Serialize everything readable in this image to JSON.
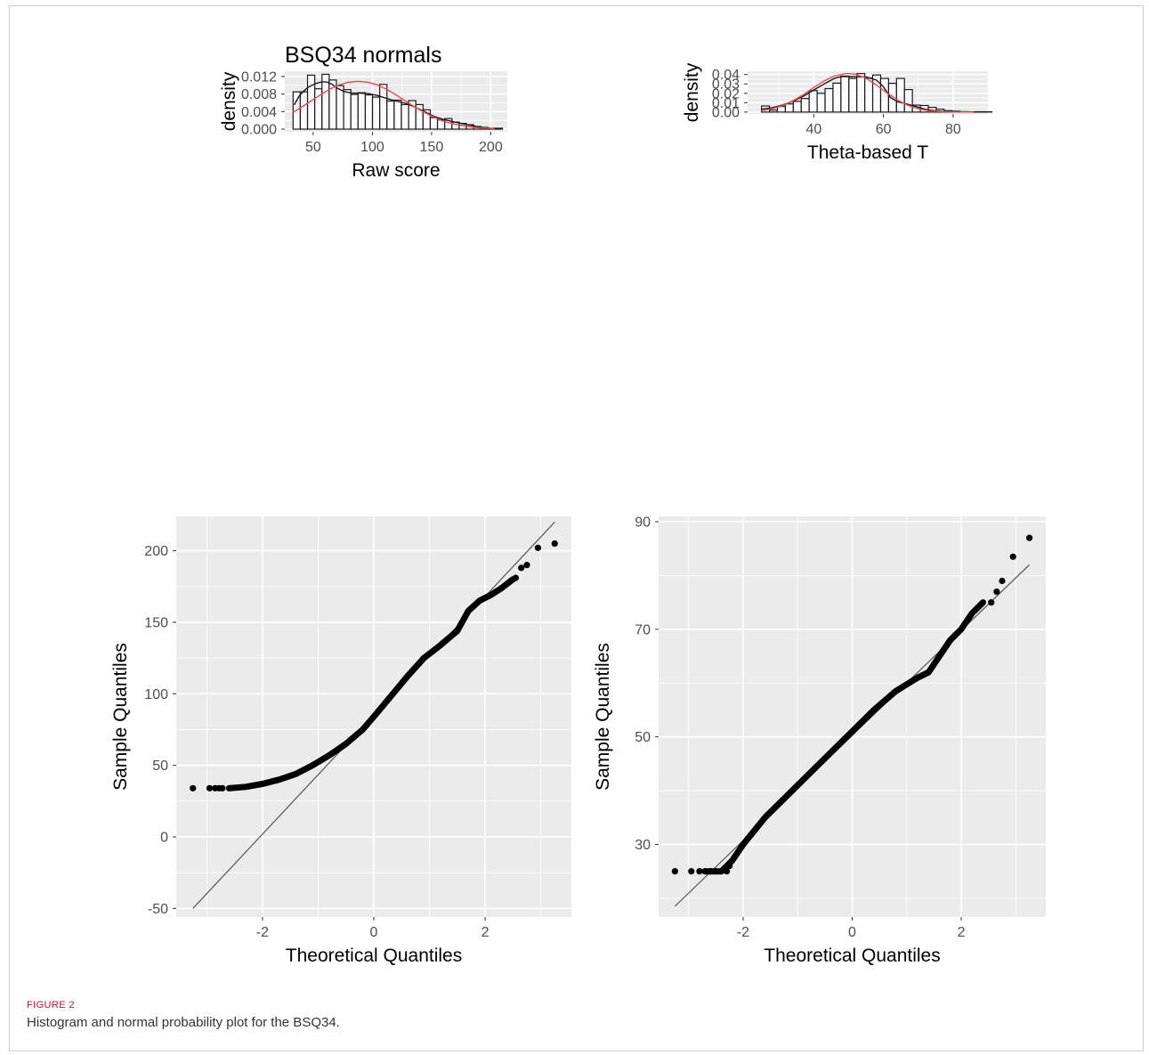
{
  "figure": {
    "label": "FIGURE 2",
    "caption": "Histogram and normal probability plot for the BSQ34."
  },
  "colors": {
    "panel_bg": "#ebebeb",
    "grid": "#ffffff",
    "bar_fill": "#ffffff",
    "bar_stroke": "#1a1a1a",
    "kde": "#1a1a1a",
    "normal_curve": "#f0484f",
    "points": "#000000",
    "tick_text": "#4d4d4d"
  },
  "chart_data": [
    {
      "id": "hist_raw",
      "type": "bar",
      "title": "BSQ34 normals",
      "xlabel": "Raw score",
      "ylabel": "density",
      "xlim": [
        26,
        214
      ],
      "ylim": [
        -0.0006,
        0.0132
      ],
      "xticks": [
        50,
        100,
        150,
        200
      ],
      "yticks": [
        0.0,
        0.004,
        0.008,
        0.012
      ],
      "ytick_labels": [
        "0.000",
        "0.004",
        "0.008",
        "0.012"
      ],
      "bins": {
        "start": 33,
        "width": 6.1,
        "values": [
          0.0085,
          0.0085,
          0.0123,
          0.0092,
          0.0125,
          0.0112,
          0.0099,
          0.009,
          0.0079,
          0.0083,
          0.0078,
          0.0073,
          0.0102,
          0.0064,
          0.0066,
          0.0056,
          0.0065,
          0.0056,
          0.0044,
          0.0026,
          0.0021,
          0.0024,
          0.0016,
          0.0013,
          0.001,
          0.0006,
          0.0004,
          0.0002,
          0.0002
        ]
      },
      "series": [
        {
          "name": "",
          "role": "kernel-density",
          "x": [
            34,
            38,
            42,
            46,
            52,
            58,
            62,
            66,
            70,
            76,
            82,
            88,
            96,
            104,
            112,
            120,
            128,
            136,
            144,
            152,
            160,
            170,
            180,
            190,
            200,
            206
          ],
          "y": [
            0.0055,
            0.0075,
            0.0087,
            0.0096,
            0.0104,
            0.0108,
            0.0107,
            0.0102,
            0.0094,
            0.0086,
            0.0082,
            0.0082,
            0.0081,
            0.0077,
            0.007,
            0.0064,
            0.0059,
            0.005,
            0.004,
            0.0029,
            0.0022,
            0.0016,
            0.001,
            0.0005,
            0.0002,
            0.0001
          ]
        },
        {
          "name": "",
          "role": "normal-curve",
          "x": [
            33,
            40,
            48,
            56,
            64,
            72,
            80,
            88,
            96,
            104,
            112,
            120,
            128,
            136,
            144,
            152,
            160,
            170,
            180,
            190,
            200,
            203
          ],
          "y": [
            0.0038,
            0.005,
            0.0064,
            0.0078,
            0.0091,
            0.0101,
            0.0107,
            0.0109,
            0.0107,
            0.0101,
            0.0091,
            0.0078,
            0.0064,
            0.005,
            0.0038,
            0.0027,
            0.0018,
            0.0011,
            0.0006,
            0.0003,
            0.0002,
            0.0001
          ]
        }
      ]
    },
    {
      "id": "hist_theta",
      "type": "bar",
      "title": "",
      "xlabel": "Theta-based T",
      "ylabel": "density",
      "xlim": [
        21,
        90
      ],
      "ylim": [
        -0.002,
        0.0435
      ],
      "xticks": [
        40,
        60,
        80
      ],
      "yticks": [
        0.0,
        0.01,
        0.02,
        0.03,
        0.04
      ],
      "ytick_labels": [
        "0.00",
        "0.01",
        "0.02",
        "0.03",
        "0.04"
      ],
      "bins": {
        "start": 25,
        "width": 2.28,
        "values": [
          0.0065,
          0.002,
          0.006,
          0.0087,
          0.0114,
          0.0144,
          0.0228,
          0.02,
          0.025,
          0.0308,
          0.0383,
          0.0358,
          0.041,
          0.0362,
          0.0395,
          0.0358,
          0.0306,
          0.0358,
          0.024,
          0.0074,
          0.007,
          0.005,
          0.003,
          0.0015,
          0.001,
          0.0005,
          0.0003,
          0.0003,
          0.0003
        ]
      },
      "series": [
        {
          "name": "",
          "role": "kernel-density",
          "x": [
            25,
            28,
            31,
            34,
            37,
            40,
            43,
            46,
            48,
            50,
            52,
            55,
            58,
            60,
            62,
            64,
            66,
            69,
            72,
            75,
            78,
            82,
            86
          ],
          "y": [
            0.0031,
            0.0045,
            0.0075,
            0.0115,
            0.017,
            0.0235,
            0.03,
            0.036,
            0.0378,
            0.0378,
            0.0376,
            0.0374,
            0.034,
            0.027,
            0.0155,
            0.011,
            0.0094,
            0.0062,
            0.003,
            0.0012,
            0.0004,
            0.0002,
            0.0001
          ]
        },
        {
          "name": "",
          "role": "normal-curve",
          "x": [
            25,
            28,
            31,
            34,
            37,
            40,
            43,
            46,
            49,
            50,
            52,
            55,
            58,
            61,
            64,
            67,
            70,
            73,
            76,
            80,
            84,
            86
          ],
          "y": [
            0.0015,
            0.0035,
            0.0068,
            0.012,
            0.0185,
            0.0262,
            0.0333,
            0.0385,
            0.0408,
            0.041,
            0.0403,
            0.036,
            0.0288,
            0.0205,
            0.013,
            0.0072,
            0.0035,
            0.0015,
            0.0006,
            0.0002,
            0.0001,
            0.0
          ]
        }
      ]
    },
    {
      "id": "qq_raw",
      "type": "scatter",
      "title": "",
      "xlabel": "Theoretical Quantiles",
      "ylabel": "Sample Quantiles",
      "xlim": [
        -3.55,
        3.55
      ],
      "ylim": [
        -56,
        224
      ],
      "xticks": [
        -2,
        0,
        2
      ],
      "yticks": [
        -50,
        0,
        50,
        100,
        150,
        200
      ],
      "reference_line": {
        "x": [
          -3.25,
          3.25
        ],
        "y": [
          -50,
          220
        ]
      },
      "quantile_curve": {
        "x": [
          -2.6,
          -2.3,
          -2.0,
          -1.7,
          -1.4,
          -1.1,
          -0.8,
          -0.5,
          -0.2,
          0.0,
          0.3,
          0.6,
          0.9,
          1.2,
          1.5,
          1.7,
          1.9,
          2.1,
          2.3,
          2.5
        ],
        "y": [
          34,
          35,
          37,
          40,
          44,
          50,
          57,
          65,
          75,
          84,
          98,
          112,
          125,
          134,
          144,
          158,
          165,
          169,
          174,
          180
        ]
      },
      "x": [
        -3.25,
        -2.95,
        -2.85,
        -2.78,
        -2.72,
        2.55,
        2.65,
        2.75,
        2.95,
        3.25
      ],
      "y": [
        34,
        34,
        34,
        34,
        34,
        181,
        188,
        190,
        202,
        205
      ]
    },
    {
      "id": "qq_theta",
      "type": "scatter",
      "title": "",
      "xlabel": "Theoretical Quantiles",
      "ylabel": "Sample Quantiles",
      "xlim": [
        -3.55,
        3.55
      ],
      "ylim": [
        16.5,
        91
      ],
      "xticks": [
        -2,
        0,
        2
      ],
      "yticks": [
        30,
        50,
        70,
        90
      ],
      "reference_line": {
        "x": [
          -3.25,
          3.25
        ],
        "y": [
          18.5,
          82
        ]
      },
      "quantile_curve": {
        "x": [
          -2.7,
          -2.4,
          -2.2,
          -2.0,
          -1.6,
          -1.2,
          -0.8,
          -0.4,
          0.0,
          0.4,
          0.8,
          1.2,
          1.4,
          1.6,
          1.8,
          2.0,
          2.2,
          2.4
        ],
        "y": [
          25,
          25,
          27,
          30,
          35,
          39,
          43,
          47,
          51,
          55,
          58.5,
          61,
          62,
          65,
          68,
          70,
          73,
          75
        ]
      },
      "x": [
        -3.25,
        -2.95,
        -2.8,
        -2.7,
        -2.6,
        -2.5,
        -2.4,
        -2.3,
        -2.25,
        2.55,
        2.65,
        2.75,
        2.95,
        3.25
      ],
      "y": [
        25,
        25,
        25,
        25,
        25,
        25,
        25,
        25,
        26,
        75,
        77,
        79,
        83.5,
        87
      ]
    }
  ]
}
